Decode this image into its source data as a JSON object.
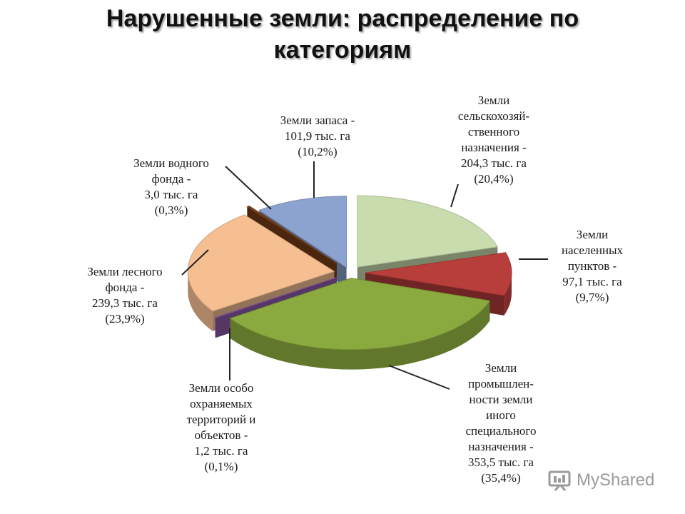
{
  "title": [
    "Нарушенные земли: распределение по",
    "категориям"
  ],
  "chart_data": {
    "type": "pie",
    "title": "Нарушенные земли: распределение по категориям",
    "unit": "тыс. га",
    "slices": [
      {
        "label": "Земли сельскохозяйственного назначения",
        "value": 204.3,
        "percent": 20.4,
        "color": "#c9dcae",
        "label_lines": [
          "Земли",
          "сельскохозяй-",
          "ственного",
          "назначения -",
          "204,3 тыс. га",
          "(20,4%)"
        ]
      },
      {
        "label": "Земли населенных пунктов",
        "value": 97.1,
        "percent": 9.7,
        "color": "#b83e3c",
        "label_lines": [
          "Земли",
          "населенных",
          "пунктов -",
          "97,1 тыс. га",
          "(9,7%)"
        ]
      },
      {
        "label": "Земли промышленности земли иного специального назначения",
        "value": 353.5,
        "percent": 35.4,
        "color": "#8aaa3f",
        "label_lines": [
          "Земли",
          "промышлен-",
          "ности земли",
          "иного",
          "специального",
          "назначения -",
          "353,5 тыс. га",
          "(35,4%)"
        ]
      },
      {
        "label": "Земли особо охраняемых территорий и объектов",
        "value": 1.2,
        "percent": 0.1,
        "color": "#8e5aa8",
        "label_lines": [
          "Земли особо",
          "охраняемых",
          "территорий и",
          "объектов -",
          "1,2 тыс. га",
          "(0,1%)"
        ]
      },
      {
        "label": "Земли лесного фонда",
        "value": 239.3,
        "percent": 23.9,
        "color": "#f5bf92",
        "label_lines": [
          "Земли лесного",
          "фонда -",
          "239,3 тыс. га",
          "(23,9%)"
        ]
      },
      {
        "label": "Земли водного фонда",
        "value": 3.0,
        "percent": 0.3,
        "color": "#7b3f17",
        "label_lines": [
          "Земли водного",
          "фонда -",
          "3,0 тыс. га",
          "(0,3%)"
        ]
      },
      {
        "label": "Земли запаса",
        "value": 101.9,
        "percent": 10.2,
        "color": "#8ca3cf",
        "label_lines": [
          "Земли запаса -",
          "101,9 тыс. га",
          "(10,2%)"
        ]
      }
    ],
    "legend": "none"
  },
  "watermark": "MyShared"
}
